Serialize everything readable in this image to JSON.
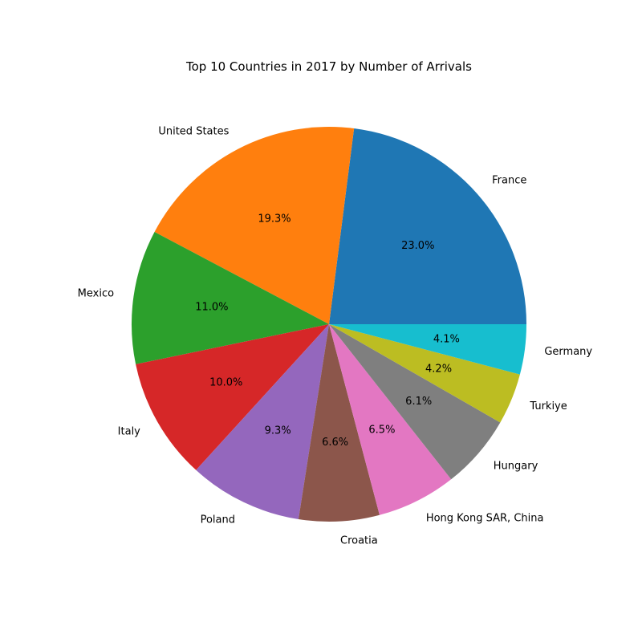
{
  "chart_data": {
    "type": "pie",
    "title": "Top 10 Countries in 2017 by Number of Arrivals",
    "start_angle_deg": 0,
    "direction": "counterclockwise",
    "slices": [
      {
        "label": "France",
        "value": 23.0,
        "pct_label": "23.0%",
        "color": "#1f77b4"
      },
      {
        "label": "United States",
        "value": 19.3,
        "pct_label": "19.3%",
        "color": "#ff7f0e"
      },
      {
        "label": "Mexico",
        "value": 11.0,
        "pct_label": "11.0%",
        "color": "#2ca02c"
      },
      {
        "label": "Italy",
        "value": 10.0,
        "pct_label": "10.0%",
        "color": "#d62728"
      },
      {
        "label": "Poland",
        "value": 9.3,
        "pct_label": "9.3%",
        "color": "#9467bd"
      },
      {
        "label": "Croatia",
        "value": 6.6,
        "pct_label": "6.6%",
        "color": "#8c564b"
      },
      {
        "label": "Hong Kong SAR, China",
        "value": 6.5,
        "pct_label": "6.5%",
        "color": "#e377c2"
      },
      {
        "label": "Hungary",
        "value": 6.1,
        "pct_label": "6.1%",
        "color": "#7f7f7f"
      },
      {
        "label": "Turkiye",
        "value": 4.2,
        "pct_label": "4.2%",
        "color": "#bcbd22"
      },
      {
        "label": "Germany",
        "value": 4.1,
        "pct_label": "4.1%",
        "color": "#17becf"
      }
    ]
  }
}
